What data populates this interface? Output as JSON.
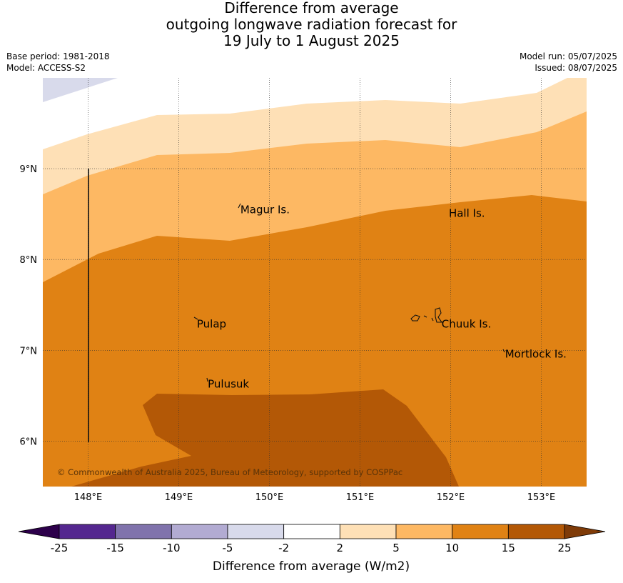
{
  "title_lines": [
    "Difference from average",
    "outgoing longwave radiation forecast for",
    "19 July to 1 August 2025"
  ],
  "meta_left": {
    "base_period": "Base period: 1981-2018",
    "model": "Model: ACCESS-S2"
  },
  "meta_right": {
    "model_run": "Model run: 05/07/2025",
    "issued": "Issued: 08/07/2025"
  },
  "map": {
    "lon_range": [
      147.5,
      153.5
    ],
    "lat_range": [
      5.5,
      10.0
    ],
    "lon_ticks": [
      {
        "value": 148,
        "label": "148°E"
      },
      {
        "value": 149,
        "label": "149°E"
      },
      {
        "value": 150,
        "label": "150°E"
      },
      {
        "value": 151,
        "label": "151°E"
      },
      {
        "value": 152,
        "label": "152°E"
      },
      {
        "value": 153,
        "label": "153°E"
      }
    ],
    "lat_ticks": [
      {
        "value": 9,
        "label": "9°N"
      },
      {
        "value": 8,
        "label": "8°N"
      },
      {
        "value": 7,
        "label": "7°N"
      },
      {
        "value": 6,
        "label": "6°N"
      }
    ],
    "places": [
      {
        "name": "Magur Is.",
        "lon": 149.68,
        "lat": 8.55
      },
      {
        "name": "Hall Is.",
        "lon": 151.98,
        "lat": 8.51
      },
      {
        "name": "Pulap",
        "lon": 149.2,
        "lat": 7.29
      },
      {
        "name": "Chuuk Is.",
        "lon": 151.9,
        "lat": 7.29
      },
      {
        "name": "Mortlock Is.",
        "lon": 152.6,
        "lat": 6.96
      },
      {
        "name": "Pulusuk",
        "lon": 149.32,
        "lat": 6.63
      }
    ],
    "copyright": "© Commonwealth of Australia 2025, Bureau of Meteorology, supported by COSPPac"
  },
  "colorbar": {
    "segments": [
      {
        "range": "-25 to -15",
        "color": "#54278f"
      },
      {
        "range": "-15 to -10",
        "color": "#8073ac"
      },
      {
        "range": "-10 to -5",
        "color": "#b2abd2"
      },
      {
        "range": "-5 to -2",
        "color": "#d8daeb"
      },
      {
        "range": "-2 to 2",
        "color": "#ffffff"
      },
      {
        "range": "2 to 5",
        "color": "#fee0b6"
      },
      {
        "range": "5 to 10",
        "color": "#fdb863"
      },
      {
        "range": "10 to 15",
        "color": "#e08214"
      },
      {
        "range": "15 to 25",
        "color": "#b35806"
      }
    ],
    "under_color": "#2d004b",
    "over_color": "#7f3b08",
    "tick_labels": [
      "-25",
      "-15",
      "-10",
      "-5",
      "-2",
      "2",
      "5",
      "10",
      "15",
      "25"
    ],
    "label": "Difference from average (W/m2)"
  }
}
